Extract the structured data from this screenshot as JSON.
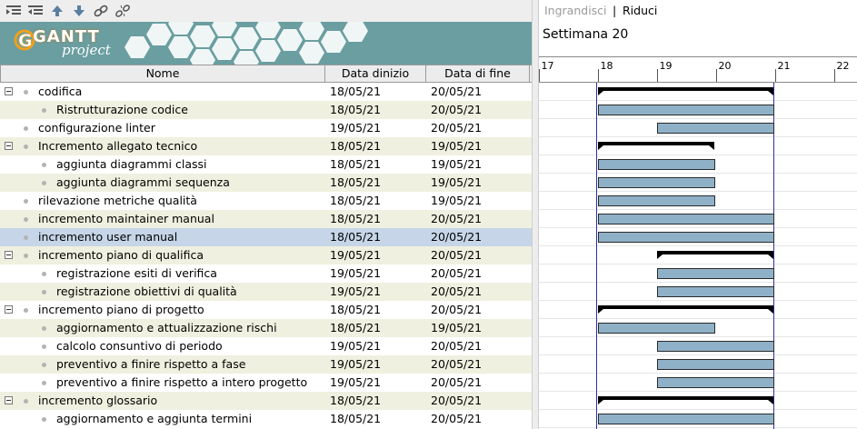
{
  "toolbar": {
    "icons": [
      "indent-icon",
      "outdent-icon",
      "move-up-icon",
      "move-down-icon",
      "link-icon",
      "unlink-icon"
    ]
  },
  "banner": {
    "logo_text": "GANTT",
    "logo_subtext": "project"
  },
  "table": {
    "headers": {
      "name": "Nome",
      "start": "Data dinizio",
      "end": "Data di fine"
    },
    "rows": [
      {
        "name": "codifica",
        "start": "18/05/21",
        "end": "20/05/21",
        "level": 0,
        "group": true
      },
      {
        "name": "Ristrutturazione codice",
        "start": "18/05/21",
        "end": "20/05/21",
        "level": 1,
        "group": false
      },
      {
        "name": "configurazione linter",
        "start": "19/05/21",
        "end": "20/05/21",
        "level": 0,
        "group": false
      },
      {
        "name": "Incremento allegato tecnico",
        "start": "18/05/21",
        "end": "19/05/21",
        "level": 0,
        "group": true
      },
      {
        "name": "aggiunta diagrammi classi",
        "start": "18/05/21",
        "end": "19/05/21",
        "level": 1,
        "group": false
      },
      {
        "name": "aggiunta diagrammi sequenza",
        "start": "18/05/21",
        "end": "19/05/21",
        "level": 1,
        "group": false
      },
      {
        "name": "rilevazione metriche qualità",
        "start": "18/05/21",
        "end": "19/05/21",
        "level": 0,
        "group": false
      },
      {
        "name": "incremento maintainer manual",
        "start": "18/05/21",
        "end": "20/05/21",
        "level": 0,
        "group": false
      },
      {
        "name": "incremento user manual",
        "start": "18/05/21",
        "end": "20/05/21",
        "level": 0,
        "group": false,
        "selected": true
      },
      {
        "name": "incremento piano di qualifica",
        "start": "19/05/21",
        "end": "20/05/21",
        "level": 0,
        "group": true
      },
      {
        "name": "registrazione esiti di verifica",
        "start": "19/05/21",
        "end": "20/05/21",
        "level": 1,
        "group": false
      },
      {
        "name": "registrazione obiettivi di qualità",
        "start": "19/05/21",
        "end": "20/05/21",
        "level": 1,
        "group": false
      },
      {
        "name": "incremento piano di progetto",
        "start": "18/05/21",
        "end": "20/05/21",
        "level": 0,
        "group": true
      },
      {
        "name": "aggiornamento e attualizzazione rischi",
        "start": "18/05/21",
        "end": "19/05/21",
        "level": 1,
        "group": false
      },
      {
        "name": "calcolo consuntivo di periodo",
        "start": "19/05/21",
        "end": "20/05/21",
        "level": 1,
        "group": false
      },
      {
        "name": "preventivo a finire rispetto a fase",
        "start": "19/05/21",
        "end": "20/05/21",
        "level": 1,
        "group": false
      },
      {
        "name": "preventivo a finire rispetto a intero progetto",
        "start": "19/05/21",
        "end": "20/05/21",
        "level": 1,
        "group": false
      },
      {
        "name": "incremento glossario",
        "start": "18/05/21",
        "end": "20/05/21",
        "level": 0,
        "group": true
      },
      {
        "name": "aggiornamento e aggiunta termini",
        "start": "18/05/21",
        "end": "20/05/21",
        "level": 1,
        "group": false
      }
    ]
  },
  "chart": {
    "zoom_in": "Ingrandisci",
    "zoom_separator": "|",
    "zoom_out": "Riduci",
    "week_label": "Settimana  20",
    "days": [
      "17",
      "18",
      "19",
      "20",
      "21",
      "22"
    ],
    "today_day": "18",
    "colors": {
      "task_bar": "#8fb1c8",
      "task_border": "#2a2a2a",
      "summary_bar": "#000000",
      "today_line": "#3030a0",
      "grid": "#d0d0d0",
      "row_alt": "#f0f0e0",
      "row_selected": "#c6d6e8"
    }
  }
}
